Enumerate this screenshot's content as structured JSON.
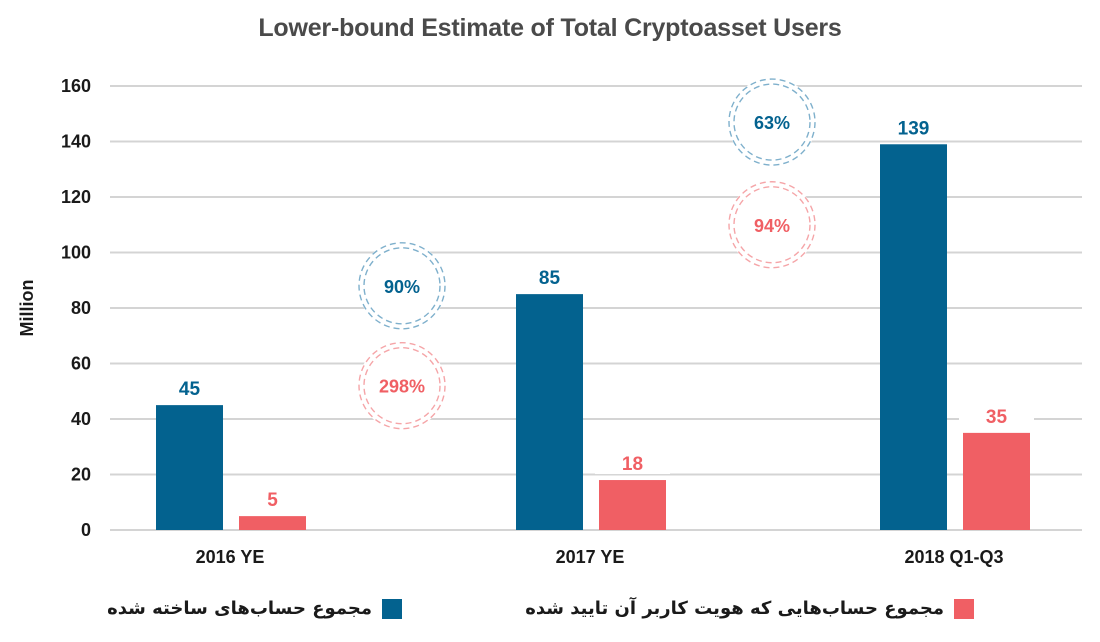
{
  "chart_data": {
    "type": "bar",
    "title": "Lower-bound Estimate of Total Cryptoasset Users",
    "xlabel": "",
    "ylabel": "Million",
    "ylim": [
      0,
      160
    ],
    "yticks": [
      0,
      20,
      40,
      60,
      80,
      100,
      120,
      140,
      160
    ],
    "grid": true,
    "categories": [
      "2016 YE",
      "2017 YE",
      "2018 Q1-Q3"
    ],
    "series": [
      {
        "name": "مجموع حساب‌های ساخته شده",
        "color": "#03628f",
        "values": [
          45,
          85,
          139
        ],
        "labels": [
          "45",
          "85",
          "139"
        ]
      },
      {
        "name": "مجموع حساب‌هایی که هویت کاربر آن تایید شده",
        "color": "#f05f64",
        "values": [
          5,
          18,
          35
        ],
        "labels": [
          "5",
          "18",
          "35"
        ]
      }
    ],
    "annotations": [
      {
        "text": "90%",
        "series": 0,
        "between": [
          "2016 YE",
          "2017 YE"
        ],
        "y": 88
      },
      {
        "text": "298%",
        "series": 1,
        "between": [
          "2016 YE",
          "2017 YE"
        ],
        "y": 52
      },
      {
        "text": "63%",
        "series": 0,
        "between": [
          "2017 YE",
          "2018 Q1-Q3"
        ],
        "y": 147
      },
      {
        "text": "94%",
        "series": 1,
        "between": [
          "2017 YE",
          "2018 Q1-Q3"
        ],
        "y": 110
      }
    ],
    "legend_position": "bottom"
  },
  "colors": {
    "blue": "#03628f",
    "red": "#f05f64",
    "blue_ring": "#7fb0cc",
    "red_ring": "#f5a5a8",
    "grid": "#d4d4d4",
    "text": "#1a1a1a"
  }
}
